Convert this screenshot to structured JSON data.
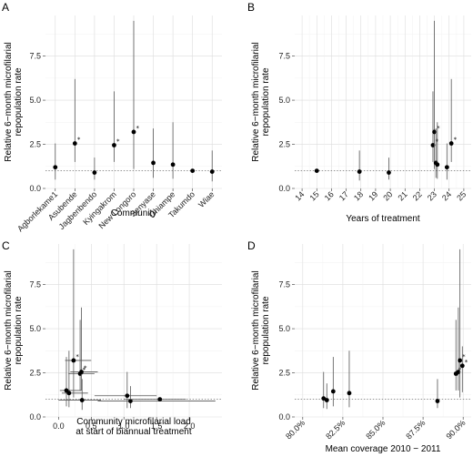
{
  "chart_data": [
    {
      "id": "A",
      "panel_label": "A",
      "type": "scatter",
      "x_kind": "category",
      "categories": [
        "Agborlekame1",
        "Asubende",
        "Jagbenbendo",
        "Kyingakrom",
        "New Longoro",
        "Senyase",
        "Ohiampe",
        "Takumdo",
        "Wiae"
      ],
      "xlabel": "Community",
      "ylabel": "Relative 6−month microfilarial repopulation rate",
      "ylim": [
        0,
        9.8
      ],
      "yticks": [
        0,
        2.5,
        5,
        7.5
      ],
      "ytick_labels": [
        "0.0",
        "2.5",
        "5.0",
        "7.5"
      ],
      "reference_y": 1,
      "grid": true,
      "points": [
        {
          "x": "Agborlekame1",
          "y": 1.2,
          "lo": 0.5,
          "hi": 2.55
        },
        {
          "x": "Asubende",
          "y": 2.55,
          "lo": 1.5,
          "hi": 6.2,
          "sig": true
        },
        {
          "x": "Jagbenbendo",
          "y": 0.9,
          "lo": 0.5,
          "hi": 1.75
        },
        {
          "x": "Kyingakrom",
          "y": 2.45,
          "lo": 1.5,
          "hi": 5.5,
          "sig": true
        },
        {
          "x": "New Longoro",
          "y": 3.2,
          "lo": 1.1,
          "hi": 9.5,
          "sig": true
        },
        {
          "x": "Senyase",
          "y": 1.45,
          "lo": 0.6,
          "hi": 3.4
        },
        {
          "x": "Ohiampe",
          "y": 1.35,
          "lo": 0.55,
          "hi": 3.75
        },
        {
          "x": "Takumdo",
          "y": 1.0,
          "lo": 0.9,
          "hi": 1.1
        },
        {
          "x": "Wiae",
          "y": 0.95,
          "lo": 0.4,
          "hi": 2.15
        }
      ]
    },
    {
      "id": "B",
      "panel_label": "B",
      "type": "scatter",
      "x_kind": "numeric",
      "xlabel": "Years of treatment",
      "ylabel": "Relative 6−month microfilarial repopulation rate",
      "xlim": [
        13.5,
        25.5
      ],
      "xticks": [
        14,
        15,
        16,
        17,
        18,
        19,
        20,
        21,
        22,
        23,
        24,
        25
      ],
      "xtick_labels": [
        "14",
        "15",
        "16",
        "17",
        "18",
        "19",
        "20",
        "21",
        "22",
        "23",
        "24",
        "25"
      ],
      "xtick_rotate": true,
      "ylim": [
        0,
        9.8
      ],
      "yticks": [
        0,
        2.5,
        5,
        7.5
      ],
      "ytick_labels": [
        "0.0",
        "2.5",
        "5.0",
        "7.5"
      ],
      "reference_y": 1,
      "grid": true,
      "points": [
        {
          "x": 15,
          "y": 1.0,
          "lo": 0.9,
          "hi": 1.1
        },
        {
          "x": 17.9,
          "y": 0.95,
          "lo": 0.45,
          "hi": 2.15
        },
        {
          "x": 19.9,
          "y": 0.9,
          "lo": 0.5,
          "hi": 1.75
        },
        {
          "x": 22.9,
          "y": 2.45,
          "lo": 1.5,
          "hi": 5.5,
          "sig": true
        },
        {
          "x": 23.0,
          "y": 3.2,
          "lo": 1.1,
          "hi": 9.5,
          "sig": true
        },
        {
          "x": 23.1,
          "y": 1.45,
          "lo": 0.6,
          "hi": 3.4
        },
        {
          "x": 23.2,
          "y": 1.35,
          "lo": 0.55,
          "hi": 3.75
        },
        {
          "x": 23.85,
          "y": 1.2,
          "lo": 0.5,
          "hi": 2.55
        },
        {
          "x": 24.15,
          "y": 2.55,
          "lo": 1.5,
          "hi": 6.2,
          "sig": true
        }
      ]
    },
    {
      "id": "C",
      "panel_label": "C",
      "type": "scatter",
      "x_kind": "numeric",
      "xlabel": "Community microfilarial load\nat start of biannual treatment",
      "ylabel": "Relative 6−month microfilarial repopulation rate",
      "xlim": [
        -0.2,
        2.5
      ],
      "xticks": [
        0,
        0.5,
        1,
        1.5,
        2
      ],
      "xtick_labels": [
        "0.0",
        "0.5",
        "1.0",
        "1.5",
        "2.0"
      ],
      "ylim": [
        0,
        9.8
      ],
      "yticks": [
        0,
        2.5,
        5,
        7.5
      ],
      "ytick_labels": [
        "0.0",
        "2.5",
        "5.0",
        "7.5"
      ],
      "reference_y": 1,
      "grid": true,
      "points": [
        {
          "x": 0.12,
          "y": 1.5,
          "lo": 0.6,
          "hi": 3.4,
          "xlo": 0.02,
          "xhi": 0.35
        },
        {
          "x": 0.16,
          "y": 1.35,
          "lo": 0.55,
          "hi": 3.75,
          "xlo": 0.05,
          "xhi": 0.45
        },
        {
          "x": 0.23,
          "y": 3.2,
          "lo": 1.1,
          "hi": 9.5,
          "xlo": 0.1,
          "xhi": 0.5,
          "sig": true
        },
        {
          "x": 0.33,
          "y": 2.45,
          "lo": 1.5,
          "hi": 5.5,
          "xlo": 0.15,
          "xhi": 0.55,
          "sig": true
        },
        {
          "x": 0.35,
          "y": 2.55,
          "lo": 1.5,
          "hi": 6.2,
          "xlo": 0.18,
          "xhi": 0.6,
          "sig": true
        },
        {
          "x": 0.36,
          "y": 0.95,
          "lo": 0.4,
          "hi": 2.15,
          "xlo": 0.0,
          "xhi": 0.65
        },
        {
          "x": 1.05,
          "y": 1.2,
          "lo": 0.5,
          "hi": 2.55,
          "xlo": 0.55,
          "xhi": 1.5
        },
        {
          "x": 1.1,
          "y": 0.9,
          "lo": 0.5,
          "hi": 1.75,
          "xlo": 0.6,
          "xhi": 2.4
        },
        {
          "x": 1.55,
          "y": 1.0,
          "lo": 0.9,
          "hi": 1.1,
          "xlo": 1.0,
          "xhi": 1.95
        }
      ]
    },
    {
      "id": "D",
      "panel_label": "D",
      "type": "scatter",
      "x_kind": "numeric",
      "xlabel": "Mean coverage 2010 − 2011",
      "ylabel": "Relative 6−month microfilarial repopulation rate",
      "xlim": [
        79.5,
        90.5
      ],
      "xticks": [
        80,
        82.5,
        85,
        87.5,
        90
      ],
      "xtick_labels": [
        "80.0%",
        "82.5%",
        "85.0%",
        "87.5%",
        "90.0%"
      ],
      "xtick_rotate": true,
      "ylim": [
        0,
        9.8
      ],
      "yticks": [
        0,
        2.5,
        5,
        7.5
      ],
      "ytick_labels": [
        "0.0",
        "2.5",
        "5.0",
        "7.5"
      ],
      "reference_y": 1,
      "grid": true,
      "points": [
        {
          "x": 81.3,
          "y": 1.05,
          "lo": 0.5,
          "hi": 2.55
        },
        {
          "x": 81.5,
          "y": 0.95,
          "lo": 0.45,
          "hi": 1.9
        },
        {
          "x": 81.9,
          "y": 1.45,
          "lo": 0.6,
          "hi": 3.4
        },
        {
          "x": 82.9,
          "y": 1.35,
          "lo": 0.55,
          "hi": 3.75
        },
        {
          "x": 88.4,
          "y": 0.9,
          "lo": 0.5,
          "hi": 2.15
        },
        {
          "x": 89.55,
          "y": 2.45,
          "lo": 1.5,
          "hi": 5.5,
          "sig": true
        },
        {
          "x": 89.7,
          "y": 2.55,
          "lo": 1.5,
          "hi": 6.2,
          "sig": true
        },
        {
          "x": 89.8,
          "y": 3.2,
          "lo": 1.1,
          "hi": 9.5,
          "sig": true
        },
        {
          "x": 89.95,
          "y": 2.9,
          "lo": 1.4,
          "hi": 4.0,
          "sig": true
        }
      ]
    }
  ],
  "significance_marker": "*"
}
